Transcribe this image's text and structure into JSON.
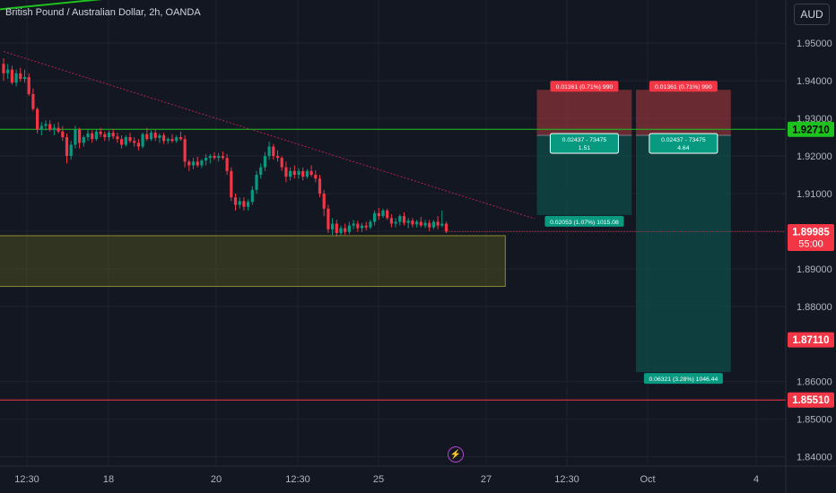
{
  "header": {
    "title": "British Pound / Australian Dollar, 2h, OANDA",
    "currency_button": "AUD"
  },
  "chart_data": {
    "type": "candlestick",
    "title": "British Pound / Australian Dollar, 2h, OANDA",
    "y_axis": {
      "ticks": [
        "1.95000",
        "1.94000",
        "1.93000",
        "1.92000",
        "1.91000",
        "1.90000",
        "1.89000",
        "1.88000",
        "1.86000",
        "1.85000",
        "1.84000"
      ],
      "range": [
        1.8375,
        1.9615
      ],
      "unit": "AUD"
    },
    "x_axis": {
      "ticks": [
        "12:30",
        "18",
        "20",
        "12:30",
        "25",
        "27",
        "12:30",
        "Oct",
        "4"
      ]
    },
    "price_labels": [
      {
        "value": "1.92710",
        "color": "#1ec21e",
        "text_color": "#000000"
      },
      {
        "value": "1.89985",
        "sub": "55:00",
        "color": "#f23645",
        "text_color": "#ffffff"
      },
      {
        "value": "1.87110",
        "color": "#f23645",
        "text_color": "#ffffff"
      },
      {
        "value": "1.85510",
        "color": "#f23645",
        "text_color": "#ffffff"
      }
    ],
    "horizontal_lines": [
      {
        "price": 1.9271,
        "color": "#1ec21e"
      },
      {
        "price": 1.8551,
        "color": "#f23645"
      }
    ],
    "trendlines": [
      {
        "color": "#1ec21e",
        "from": {
          "bar": -1,
          "price": 1.959
        },
        "to": {
          "bar": 88,
          "price": 1.969
        }
      },
      {
        "color": "#b2224a",
        "dashed": true,
        "from": {
          "bar": 0,
          "price": 1.9478
        },
        "to": {
          "bar": 126,
          "price": 1.9033
        }
      }
    ],
    "zone": {
      "from_bar": -1,
      "to_bar": 119,
      "top": 1.8988,
      "bottom": 1.8853,
      "color": "#6b6a1f"
    },
    "positions": [
      {
        "entry": 1.9255,
        "stop": 1.9376,
        "target_price": 1.9043,
        "from_bar": 126.5,
        "to_bar": 149,
        "stop_label": "0.01361 (0.71%) 990",
        "center_label": [
          "0.02437 - 73475",
          "1.51"
        ],
        "target_label": "0.02053 (1.07%) 1015.08"
      },
      {
        "entry": 1.9255,
        "stop": 1.9376,
        "target_price": 1.8625,
        "from_bar": 150,
        "to_bar": 172.5,
        "stop_label": "0.01361 (0.71%) 990",
        "center_label": [
          "0.02437 - 73475",
          "4.64"
        ],
        "target_label": "0.06321 (3.28%) 1046.44"
      }
    ],
    "candles": [
      [
        1.9445,
        1.946,
        1.94,
        1.942
      ],
      [
        1.942,
        1.9445,
        1.9405,
        1.943
      ],
      [
        1.943,
        1.944,
        1.939,
        1.9395
      ],
      [
        1.9395,
        1.943,
        1.9385,
        1.942
      ],
      [
        1.942,
        1.9435,
        1.9398,
        1.9405
      ],
      [
        1.9405,
        1.943,
        1.9395,
        1.941
      ],
      [
        1.941,
        1.942,
        1.936,
        1.9365
      ],
      [
        1.9365,
        1.938,
        1.932,
        1.9325
      ],
      [
        1.9325,
        1.933,
        1.926,
        1.927
      ],
      [
        1.927,
        1.929,
        1.9255,
        1.928
      ],
      [
        1.928,
        1.9295,
        1.9268,
        1.9285
      ],
      [
        1.9285,
        1.9295,
        1.9265,
        1.927
      ],
      [
        1.927,
        1.9285,
        1.9255,
        1.9275
      ],
      [
        1.9275,
        1.929,
        1.926,
        1.9265
      ],
      [
        1.9265,
        1.928,
        1.924,
        1.925
      ],
      [
        1.925,
        1.926,
        1.918,
        1.92
      ],
      [
        1.92,
        1.924,
        1.919,
        1.923
      ],
      [
        1.923,
        1.928,
        1.922,
        1.927
      ],
      [
        1.927,
        1.9275,
        1.922,
        1.9235
      ],
      [
        1.9235,
        1.9255,
        1.9225,
        1.925
      ],
      [
        1.925,
        1.927,
        1.924,
        1.926
      ],
      [
        1.926,
        1.9268,
        1.9235,
        1.9245
      ],
      [
        1.9245,
        1.927,
        1.924,
        1.9265
      ],
      [
        1.9265,
        1.9275,
        1.925,
        1.9258
      ],
      [
        1.9258,
        1.9265,
        1.924,
        1.925
      ],
      [
        1.925,
        1.9268,
        1.924,
        1.9262
      ],
      [
        1.9262,
        1.9272,
        1.9245,
        1.9252
      ],
      [
        1.9252,
        1.9262,
        1.9235,
        1.9245
      ],
      [
        1.9245,
        1.9255,
        1.922,
        1.923
      ],
      [
        1.923,
        1.9255,
        1.9225,
        1.925
      ],
      [
        1.925,
        1.9262,
        1.9235,
        1.924
      ],
      [
        1.924,
        1.925,
        1.9225,
        1.9235
      ],
      [
        1.9235,
        1.9245,
        1.9215,
        1.9225
      ],
      [
        1.9225,
        1.9262,
        1.922,
        1.9258
      ],
      [
        1.9258,
        1.9275,
        1.924,
        1.9245
      ],
      [
        1.9245,
        1.9268,
        1.924,
        1.9262
      ],
      [
        1.9262,
        1.927,
        1.924,
        1.9248
      ],
      [
        1.9248,
        1.926,
        1.9235,
        1.9255
      ],
      [
        1.9255,
        1.9262,
        1.9232,
        1.924
      ],
      [
        1.924,
        1.925,
        1.9232,
        1.9245
      ],
      [
        1.9245,
        1.9258,
        1.9235,
        1.924
      ],
      [
        1.924,
        1.9255,
        1.9235,
        1.925
      ],
      [
        1.925,
        1.9265,
        1.924,
        1.9245
      ],
      [
        1.9245,
        1.9255,
        1.917,
        1.9185
      ],
      [
        1.9185,
        1.919,
        1.916,
        1.9175
      ],
      [
        1.9175,
        1.9195,
        1.9165,
        1.9185
      ],
      [
        1.9185,
        1.9198,
        1.917,
        1.9175
      ],
      [
        1.9175,
        1.9192,
        1.9168,
        1.9188
      ],
      [
        1.9188,
        1.9205,
        1.9175,
        1.9195
      ],
      [
        1.9195,
        1.9205,
        1.918,
        1.92
      ],
      [
        1.92,
        1.921,
        1.919,
        1.9195
      ],
      [
        1.9195,
        1.9208,
        1.9185,
        1.92
      ],
      [
        1.92,
        1.9212,
        1.919,
        1.9195
      ],
      [
        1.9195,
        1.9205,
        1.915,
        1.916
      ],
      [
        1.916,
        1.917,
        1.908,
        1.909
      ],
      [
        1.909,
        1.91,
        1.9055,
        1.907
      ],
      [
        1.907,
        1.909,
        1.906,
        1.908
      ],
      [
        1.908,
        1.909,
        1.9055,
        1.9065
      ],
      [
        1.9065,
        1.9085,
        1.9055,
        1.9078
      ],
      [
        1.9078,
        1.912,
        1.907,
        1.911
      ],
      [
        1.911,
        1.916,
        1.91,
        1.915
      ],
      [
        1.915,
        1.918,
        1.914,
        1.917
      ],
      [
        1.917,
        1.921,
        1.916,
        1.92
      ],
      [
        1.92,
        1.9238,
        1.919,
        1.9225
      ],
      [
        1.9225,
        1.9232,
        1.919,
        1.92
      ],
      [
        1.92,
        1.9215,
        1.9185,
        1.9195
      ],
      [
        1.9195,
        1.92,
        1.916,
        1.917
      ],
      [
        1.917,
        1.9185,
        1.913,
        1.9145
      ],
      [
        1.9145,
        1.917,
        1.9135,
        1.916
      ],
      [
        1.916,
        1.9175,
        1.914,
        1.915
      ],
      [
        1.915,
        1.9168,
        1.914,
        1.916
      ],
      [
        1.916,
        1.917,
        1.9135,
        1.9145
      ],
      [
        1.9145,
        1.9165,
        1.914,
        1.916
      ],
      [
        1.916,
        1.9175,
        1.9145,
        1.915
      ],
      [
        1.915,
        1.9162,
        1.913,
        1.914
      ],
      [
        1.914,
        1.915,
        1.909,
        1.91
      ],
      [
        1.91,
        1.911,
        1.904,
        1.906
      ],
      [
        1.906,
        1.907,
        1.8995,
        1.9005
      ],
      [
        1.9005,
        1.9035,
        1.899,
        1.902
      ],
      [
        1.902,
        1.903,
        1.8985,
        1.8995
      ],
      [
        1.8995,
        1.9015,
        1.8988,
        1.9008
      ],
      [
        1.9008,
        1.902,
        1.899,
        1.8998
      ],
      [
        1.8998,
        1.9025,
        1.8992,
        1.9015
      ],
      [
        1.9015,
        1.903,
        1.9005,
        1.902
      ],
      [
        1.902,
        1.9028,
        1.8998,
        1.9008
      ],
      [
        1.9008,
        1.9022,
        1.8998,
        1.9015
      ],
      [
        1.9015,
        1.9025,
        1.9002,
        1.901
      ],
      [
        1.901,
        1.903,
        1.9005,
        1.9025
      ],
      [
        1.9025,
        1.9055,
        1.9015,
        1.9048
      ],
      [
        1.9048,
        1.9062,
        1.903,
        1.904
      ],
      [
        1.904,
        1.906,
        1.9035,
        1.9055
      ],
      [
        1.9055,
        1.906,
        1.903,
        1.9035
      ],
      [
        1.9035,
        1.9045,
        1.901,
        1.902
      ],
      [
        1.902,
        1.9035,
        1.901,
        1.9025
      ],
      [
        1.9025,
        1.9045,
        1.9015,
        1.904
      ],
      [
        1.904,
        1.905,
        1.9015,
        1.9022
      ],
      [
        1.9022,
        1.9035,
        1.9008,
        1.9028
      ],
      [
        1.9028,
        1.9035,
        1.901,
        1.9018
      ],
      [
        1.9018,
        1.903,
        1.901,
        1.9025
      ],
      [
        1.9025,
        1.9038,
        1.901,
        1.9015
      ],
      [
        1.9015,
        1.903,
        1.9008,
        1.9022
      ],
      [
        1.9022,
        1.903,
        1.9,
        1.901
      ],
      [
        1.901,
        1.903,
        1.9005,
        1.9025
      ],
      [
        1.9025,
        1.904,
        1.9005,
        1.9015
      ],
      [
        1.9015,
        1.9055,
        1.901,
        1.902
      ],
      [
        1.902,
        1.9025,
        1.8995,
        1.8999
      ]
    ]
  }
}
